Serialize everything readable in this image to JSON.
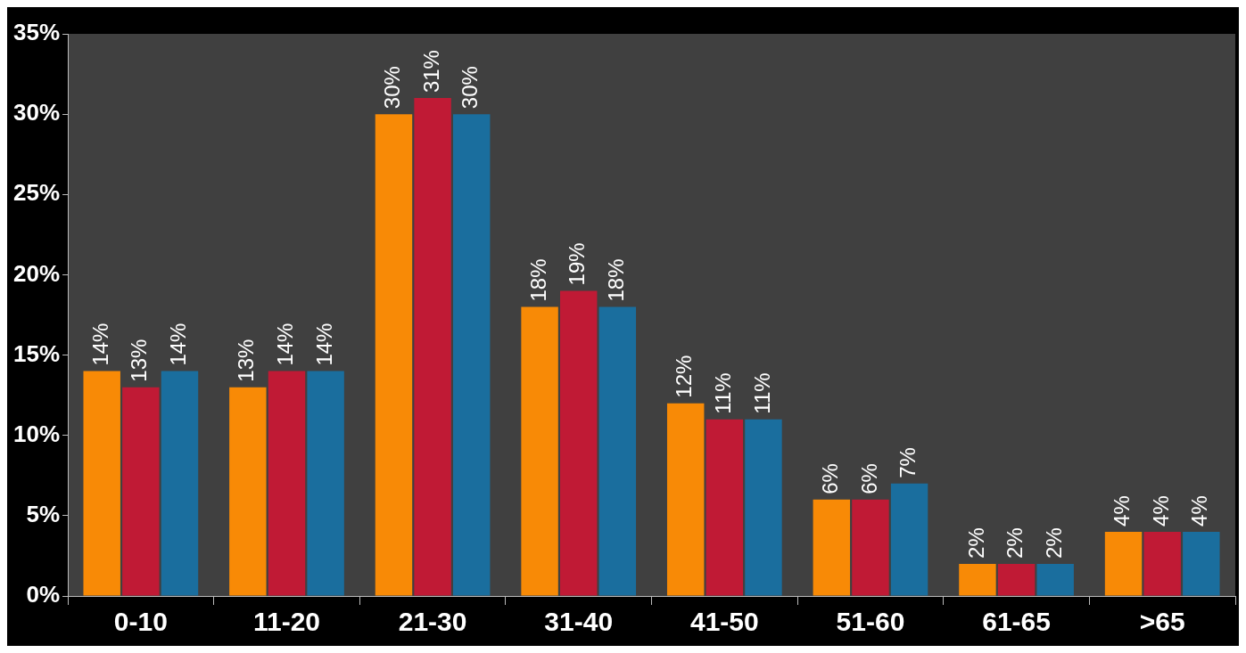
{
  "chart_data": {
    "type": "bar",
    "categories": [
      "0-10",
      "11-20",
      "21-30",
      "31-40",
      "41-50",
      "51-60",
      "61-65",
      ">65"
    ],
    "series": [
      {
        "color": "#f88a06",
        "values": [
          14,
          13,
          30,
          18,
          12,
          6,
          2,
          4
        ],
        "value_labels": [
          "14%",
          "13%",
          "30%",
          "18%",
          "12%",
          "6%",
          "2%",
          "4%"
        ]
      },
      {
        "color": "#c01a35",
        "values": [
          13,
          14,
          31,
          19,
          11,
          6,
          2,
          4
        ],
        "value_labels": [
          "13%",
          "14%",
          "31%",
          "19%",
          "11%",
          "6%",
          "2%",
          "4%"
        ]
      },
      {
        "color": "#1a6e9e",
        "values": [
          14,
          14,
          30,
          18,
          11,
          7,
          2,
          4
        ],
        "value_labels": [
          "14%",
          "14%",
          "30%",
          "18%",
          "11%",
          "7%",
          "2%",
          "4%"
        ]
      }
    ],
    "ylim": [
      0,
      35
    ],
    "yticks": [
      {
        "value": 0,
        "label": "0%"
      },
      {
        "value": 5,
        "label": "5%"
      },
      {
        "value": 10,
        "label": "10%"
      },
      {
        "value": 15,
        "label": "15%"
      },
      {
        "value": 20,
        "label": "20%"
      },
      {
        "value": 25,
        "label": "25%"
      },
      {
        "value": 30,
        "label": "30%"
      },
      {
        "value": 35,
        "label": "35%"
      }
    ],
    "grid": false,
    "legend": false
  }
}
